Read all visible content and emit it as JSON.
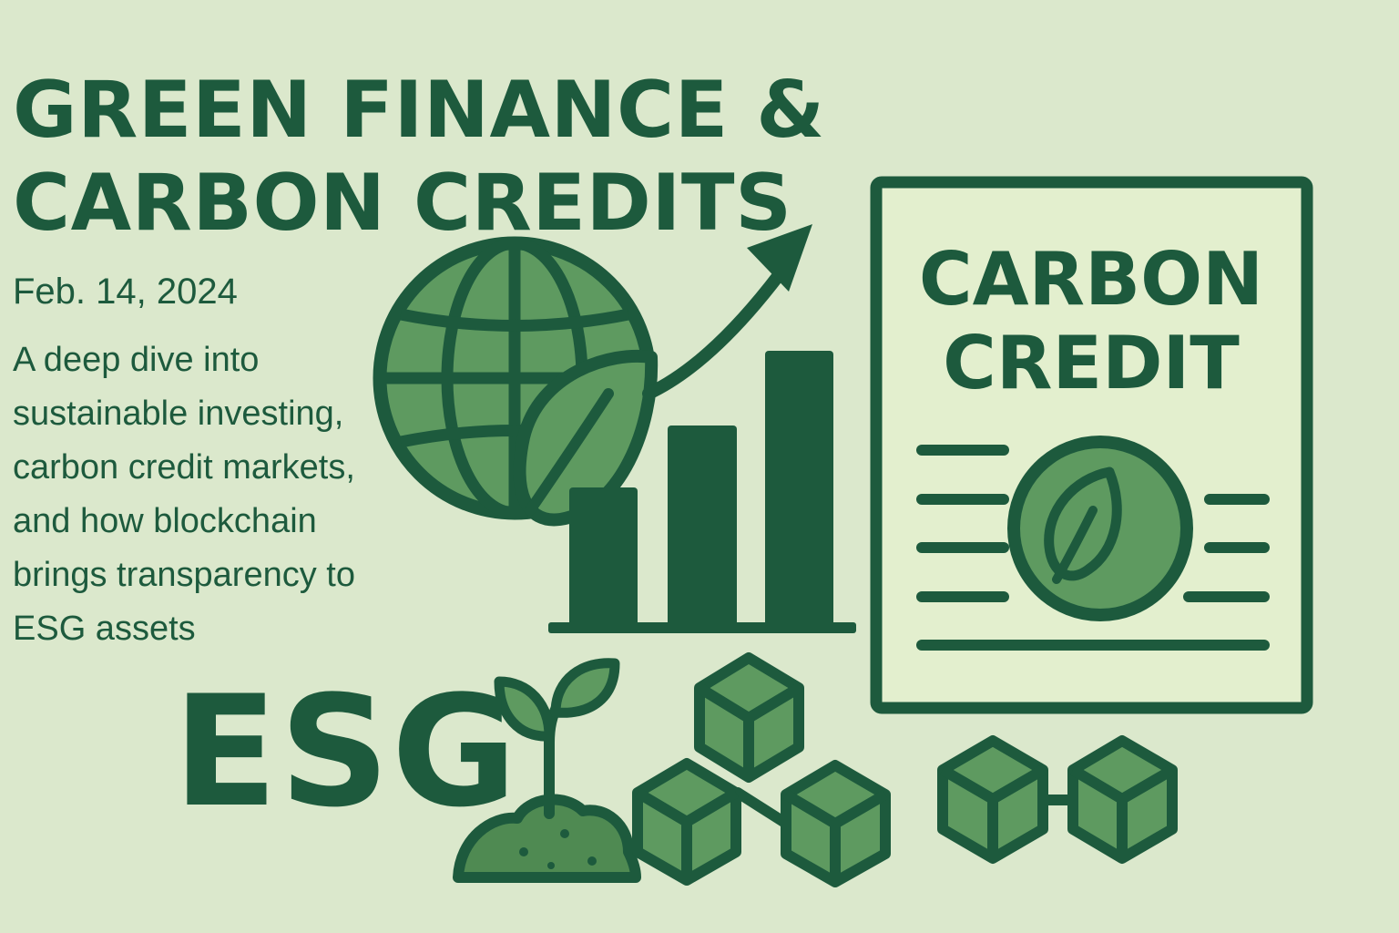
{
  "header": {
    "title": "GREEN FINANCE & CARBON CREDITS",
    "date": "Feb. 14, 2024",
    "description": "A deep dive into sustainable investing, carbon credit markets, and how blockchain brings transparency to ESG assets"
  },
  "badge": {
    "esg_label": "ESG"
  },
  "certificate": {
    "line1": "CARBON",
    "line2": "CREDIT"
  },
  "icons": {
    "globe": "globe-icon",
    "leaf": "leaf-icon",
    "arrow": "trend-arrow-icon",
    "bars": "bar-chart-icon",
    "sprout": "sprout-icon",
    "blocks": "blockchain-icon"
  },
  "colors": {
    "background": "#dbe8cc",
    "dark_green": "#1d5a3d",
    "mid_green": "#5e9a60",
    "light_green": "#e3efce"
  }
}
